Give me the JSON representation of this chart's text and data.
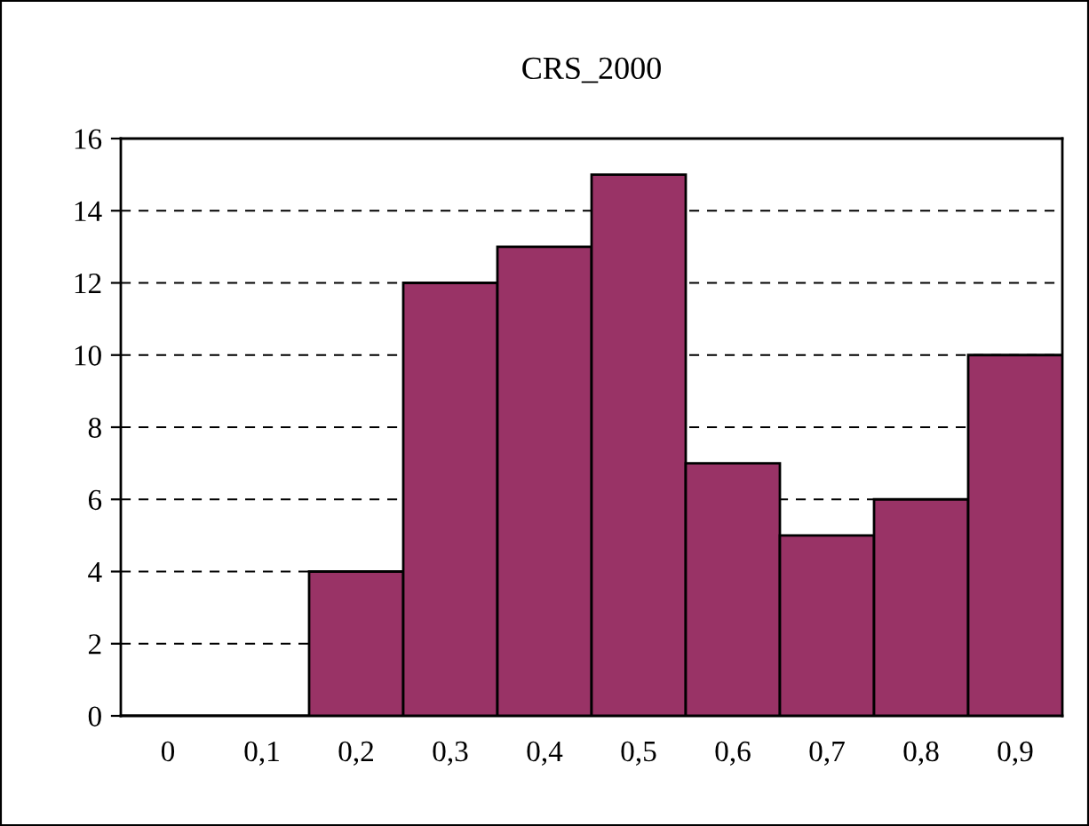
{
  "chart_data": {
    "type": "bar",
    "title": "CRS_2000",
    "categories": [
      "0",
      "0,1",
      "0,2",
      "0,3",
      "0,4",
      "0,5",
      "0,6",
      "0,7",
      "0,8",
      "0,9"
    ],
    "values": [
      0,
      0,
      4,
      12,
      13,
      15,
      7,
      5,
      6,
      10
    ],
    "color": "#993366",
    "ylim": [
      0,
      16
    ],
    "yticks": [
      0,
      2,
      4,
      6,
      8,
      10,
      12,
      14,
      16
    ],
    "grid": "y"
  }
}
